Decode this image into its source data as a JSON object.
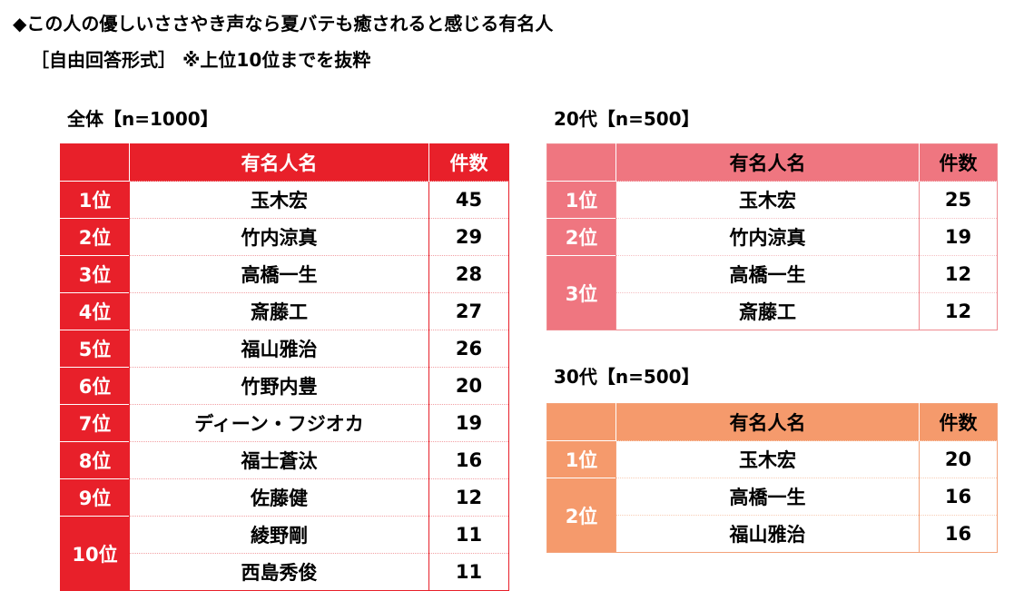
{
  "title": {
    "line1": "◆この人の優しいささやき声なら夏バテも癒されると感じる有名人",
    "line2": "［自由回答形式］ ※上位10位までを抜粋"
  },
  "colors": {
    "all": "#e8202a",
    "age20": "#ef7680",
    "age30": "#f59a6c"
  },
  "headers": {
    "name": "有名人名",
    "count": "件数"
  },
  "all": {
    "label": "全体【n=1000】",
    "rows": [
      {
        "rank": "1位",
        "name": "玉木宏",
        "count": "45"
      },
      {
        "rank": "2位",
        "name": "竹内涼真",
        "count": "29"
      },
      {
        "rank": "3位",
        "name": "高橋一生",
        "count": "28"
      },
      {
        "rank": "4位",
        "name": "斎藤工",
        "count": "27"
      },
      {
        "rank": "5位",
        "name": "福山雅治",
        "count": "26"
      },
      {
        "rank": "6位",
        "name": "竹野内豊",
        "count": "20"
      },
      {
        "rank": "7位",
        "name": "ディーン・フジオカ",
        "count": "19"
      },
      {
        "rank": "8位",
        "name": "福士蒼汰",
        "count": "16"
      },
      {
        "rank": "9位",
        "name": "佐藤健",
        "count": "12"
      },
      {
        "rank": "10位",
        "name": "綾野剛",
        "count": "11"
      },
      {
        "rank": "",
        "name": "西島秀俊",
        "count": "11"
      }
    ]
  },
  "age20": {
    "label": "20代【n=500】",
    "rows": [
      {
        "rank": "1位",
        "name": "玉木宏",
        "count": "25"
      },
      {
        "rank": "2位",
        "name": "竹内涼真",
        "count": "19"
      },
      {
        "rank": "3位",
        "name": "高橋一生",
        "count": "12"
      },
      {
        "rank": "",
        "name": "斎藤工",
        "count": "12"
      }
    ]
  },
  "age30": {
    "label": "30代【n=500】",
    "rows": [
      {
        "rank": "1位",
        "name": "玉木宏",
        "count": "20"
      },
      {
        "rank": "2位",
        "name": "高橋一生",
        "count": "16"
      },
      {
        "rank": "",
        "name": "福山雅治",
        "count": "16"
      }
    ]
  }
}
